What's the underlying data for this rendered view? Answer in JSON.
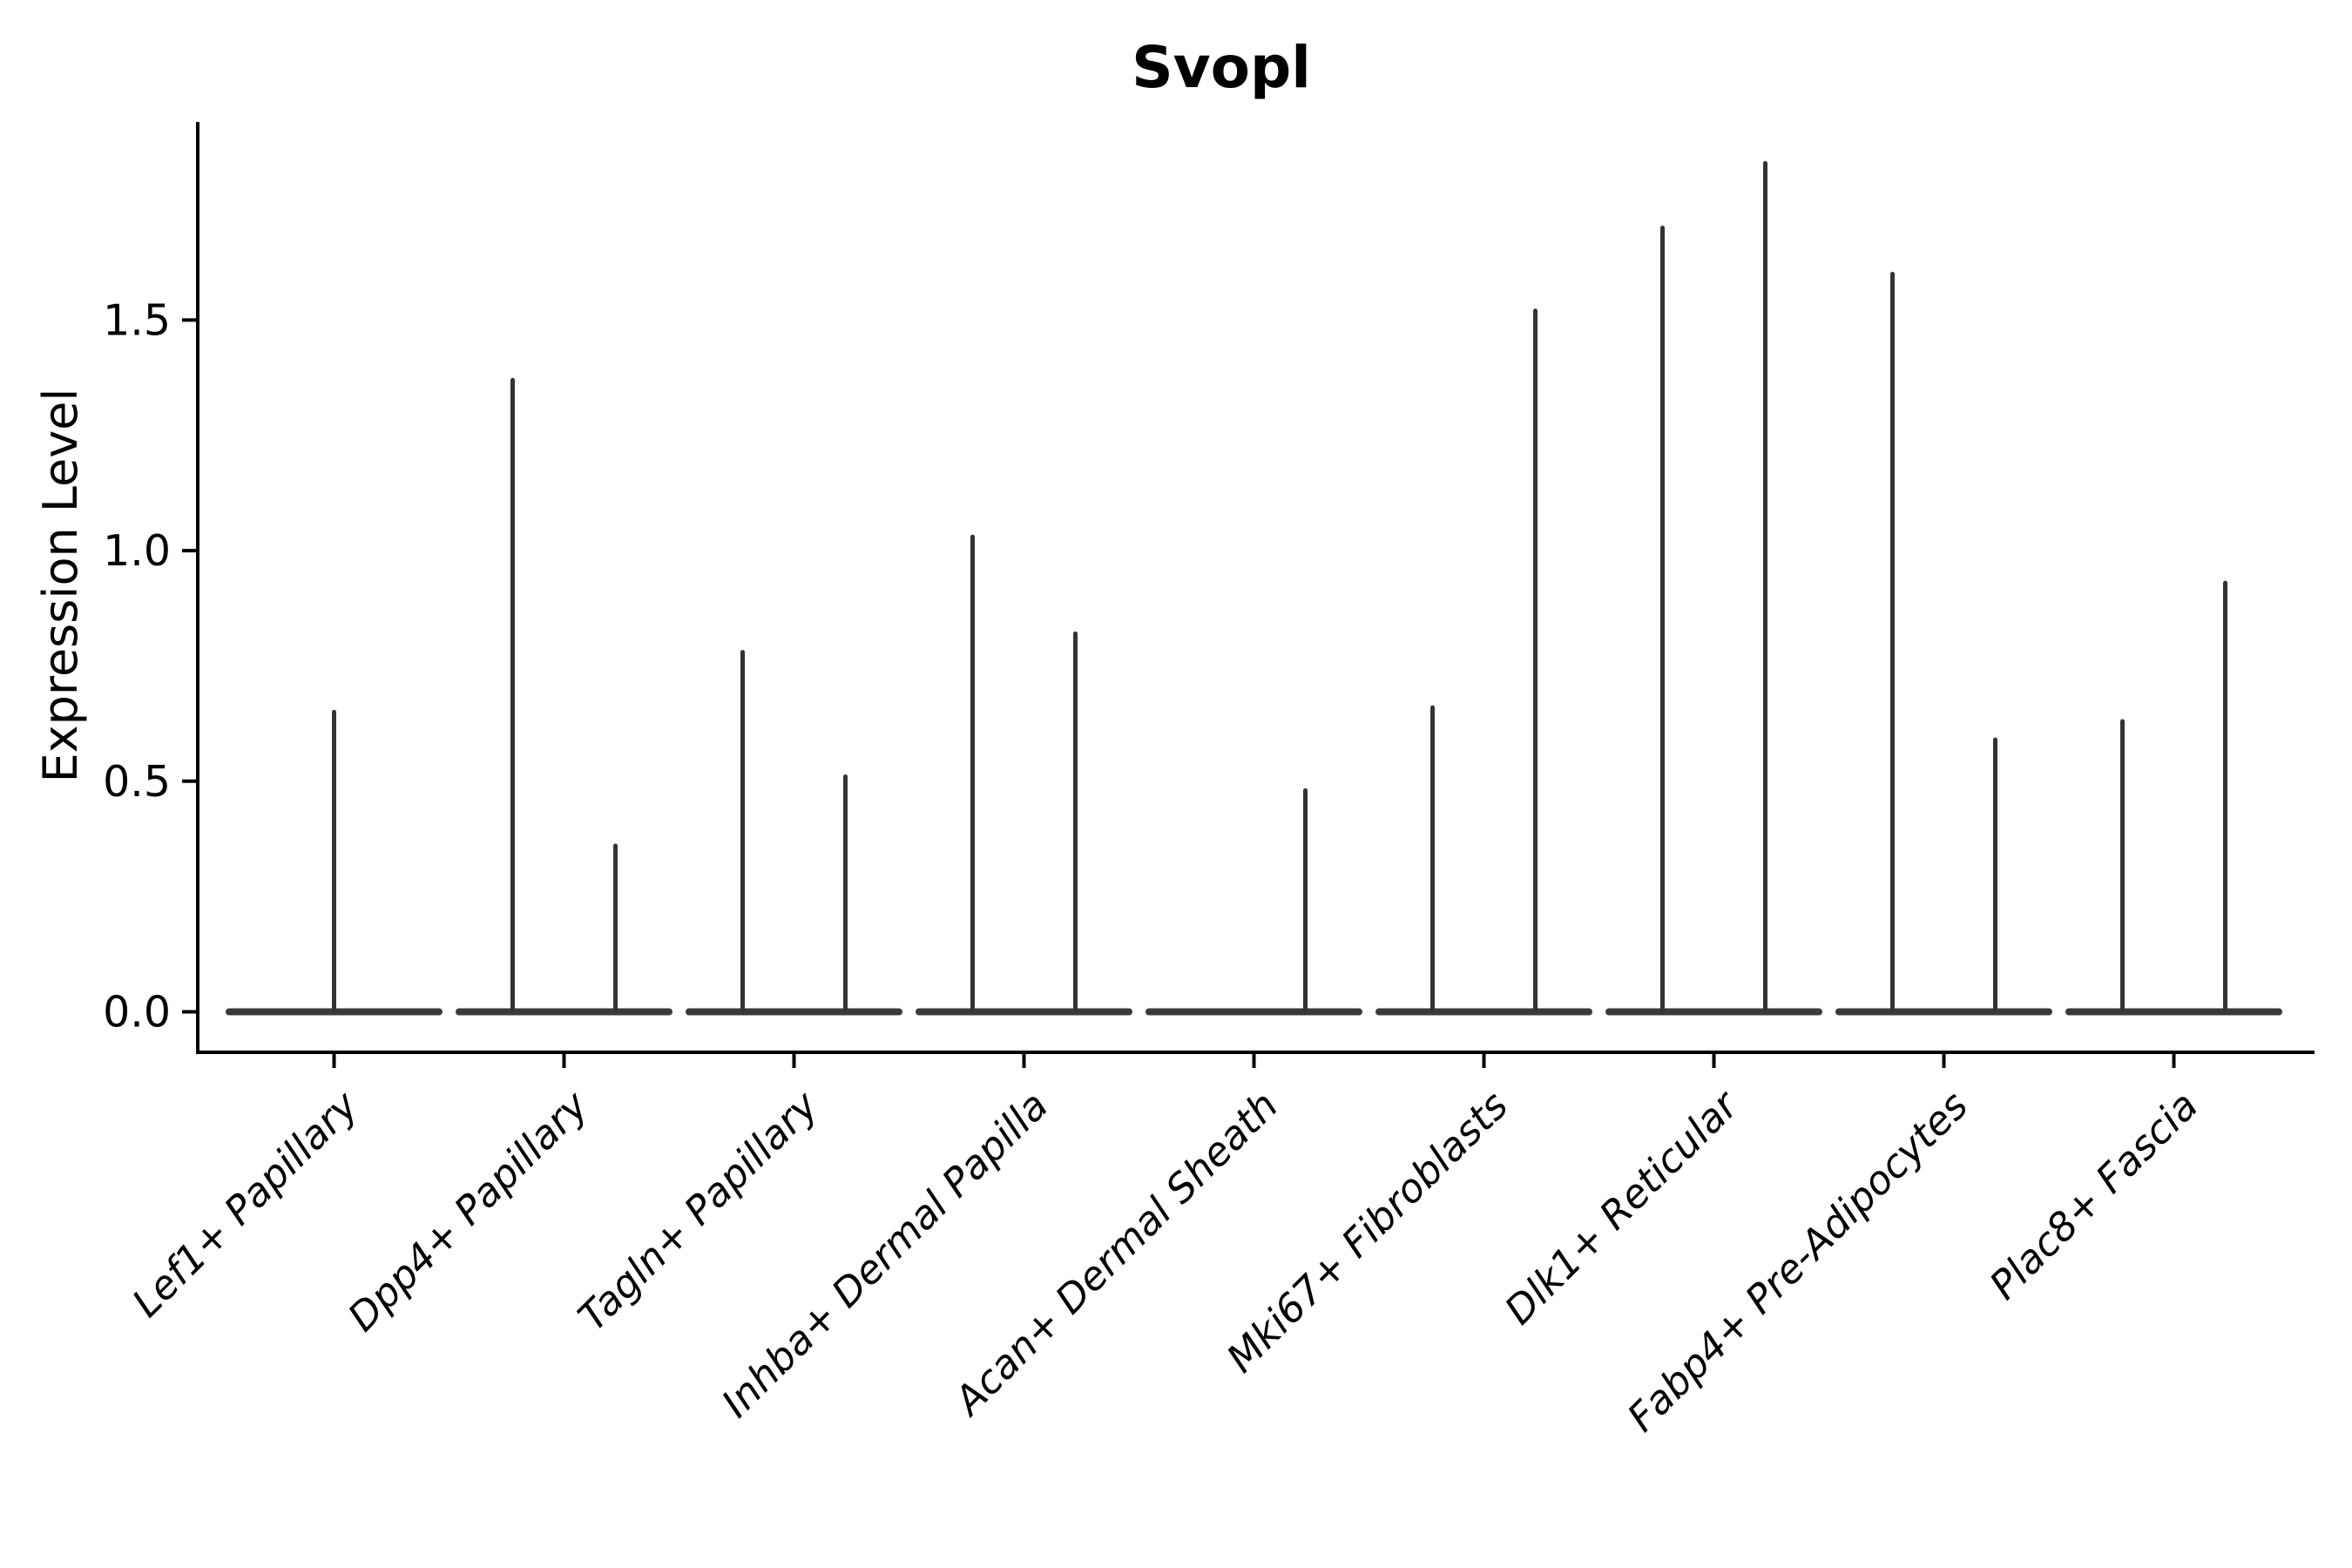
{
  "chart_data": {
    "type": "violin",
    "title": "Svopl",
    "ylabel": "Expression Level",
    "xlabel": "",
    "ylim": [
      0,
      1.93
    ],
    "ytick_labels": [
      "0.0",
      "0.5",
      "1.0",
      "1.5"
    ],
    "ytick_values": [
      0.0,
      0.5,
      1.0,
      1.5
    ],
    "grid": false,
    "legend": null,
    "description": "Violin plot of Svopl expression per cell type; each violin collapses to a flat line at 0 with a thin spike up to its maximum expression value",
    "categories": [
      {
        "label": "Lef1+ Papillary",
        "violins": [
          {
            "position": "center",
            "max": 0.65
          }
        ]
      },
      {
        "label": "Dpp4+ Papillary",
        "violins": [
          {
            "position": "left",
            "max": 1.37
          },
          {
            "position": "right",
            "max": 0.36
          }
        ]
      },
      {
        "label": "Tagln+ Papillary",
        "violins": [
          {
            "position": "left",
            "max": 0.78
          },
          {
            "position": "right",
            "max": 0.51
          }
        ]
      },
      {
        "label": "Inhba+ Dermal Papilla",
        "violins": [
          {
            "position": "left",
            "max": 1.03
          },
          {
            "position": "right",
            "max": 0.82
          }
        ]
      },
      {
        "label": "Acan+ Dermal Sheath",
        "violins": [
          {
            "position": "right",
            "max": 0.48
          }
        ]
      },
      {
        "label": "Mki67+ Fibroblasts",
        "violins": [
          {
            "position": "left",
            "max": 0.66
          },
          {
            "position": "right",
            "max": 1.52
          }
        ]
      },
      {
        "label": "Dlk1+ Reticular",
        "violins": [
          {
            "position": "left",
            "max": 1.7
          },
          {
            "position": "right",
            "max": 1.84
          }
        ]
      },
      {
        "label": "Fabp4+ Pre-Adipocytes",
        "violins": [
          {
            "position": "left",
            "max": 1.6
          },
          {
            "position": "right",
            "max": 0.59
          }
        ]
      },
      {
        "label": "Plac8+ Fascia",
        "violins": [
          {
            "position": "left",
            "max": 0.63
          },
          {
            "position": "right",
            "max": 0.93
          }
        ]
      }
    ],
    "colors": {
      "violin": "#333333",
      "baseline": "#3a3a3a",
      "axis": "#000000",
      "text": "#000000",
      "background": "#ffffff"
    }
  }
}
